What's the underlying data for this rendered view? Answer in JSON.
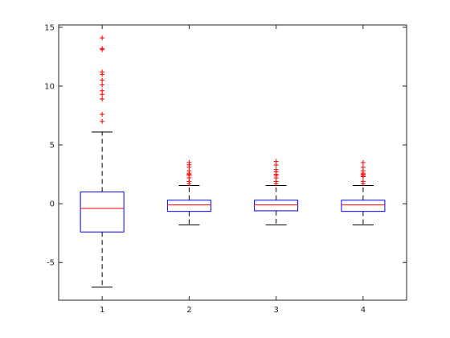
{
  "chart_data": {
    "type": "boxplot",
    "title": "",
    "xlabel": "",
    "ylabel": "",
    "categories": [
      "1",
      "2",
      "3",
      "4"
    ],
    "ylim": [
      -8.2,
      15.2
    ],
    "yticks": [
      -5,
      0,
      5,
      10,
      15
    ],
    "grid": false,
    "colors": {
      "box": "#0000ff",
      "median": "#ff0000",
      "whisker": "#000000",
      "outlier": "#ff0000"
    },
    "boxes": [
      {
        "category": "1",
        "whisker_low": -7.1,
        "q1": -2.4,
        "median": -0.4,
        "q3": 1.0,
        "whisker_high": 6.1,
        "outliers": [
          7.0,
          7.6,
          8.9,
          9.3,
          9.6,
          10.1,
          10.5,
          11.0,
          11.2,
          13.1,
          13.2,
          14.1
        ]
      },
      {
        "category": "2",
        "whisker_low": -1.8,
        "q1": -0.65,
        "median": -0.1,
        "q3": 0.3,
        "whisker_high": 1.55,
        "outliers": [
          1.7,
          1.9,
          2.2,
          2.4,
          2.5,
          2.6,
          2.8,
          3.1,
          3.3,
          3.5
        ]
      },
      {
        "category": "3",
        "whisker_low": -1.8,
        "q1": -0.6,
        "median": -0.1,
        "q3": 0.3,
        "whisker_high": 1.55,
        "outliers": [
          1.7,
          1.9,
          2.2,
          2.4,
          2.5,
          2.7,
          2.9,
          3.3,
          3.6
        ]
      },
      {
        "category": "4",
        "whisker_low": -1.8,
        "q1": -0.65,
        "median": -0.1,
        "q3": 0.3,
        "whisker_high": 1.55,
        "outliers": [
          1.7,
          1.9,
          2.3,
          2.4,
          2.5,
          2.6,
          2.8,
          3.1,
          3.5
        ]
      }
    ]
  }
}
